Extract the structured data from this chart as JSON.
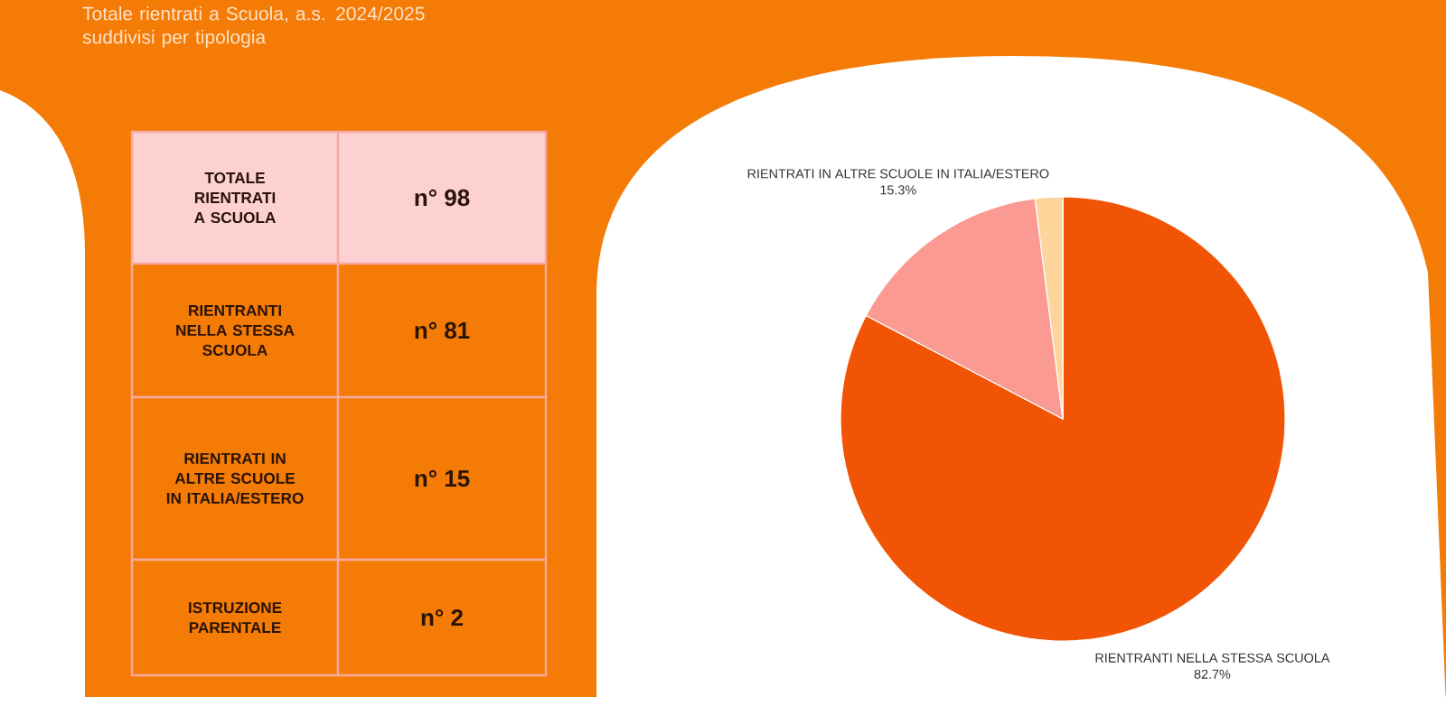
{
  "chart_data": [
    {
      "type": "other",
      "title": "Totale rientrati a Scuola, a.s. 2024/2025 suddivisi per tipologia",
      "annotations": [
        "TOTALE RIENTRATI A SCUOLA",
        "n° 98",
        "RIENTRANTI NELLA STESSA SCUOLA",
        "n° 81",
        "RIENTRATI IN ALTRE SCUOLE IN ITALIA/ESTERO",
        "n° 15",
        "ISTRUZIONE PARENTALE",
        "n° 2"
      ]
    },
    {
      "type": "pie",
      "categories": [
        "RIENTRANTI NELLA STESSA SCUOLA",
        "RIENTRATI IN ALTRE SCUOLE IN ITALIA/ESTERO",
        null
      ],
      "values": [
        82.7,
        15.3,
        2.0
      ],
      "colors": [
        "#f25405",
        "#fa9a92",
        "#fdd59b"
      ],
      "value_labels": [
        "82.7%",
        "15.3%",
        null
      ]
    }
  ]
}
